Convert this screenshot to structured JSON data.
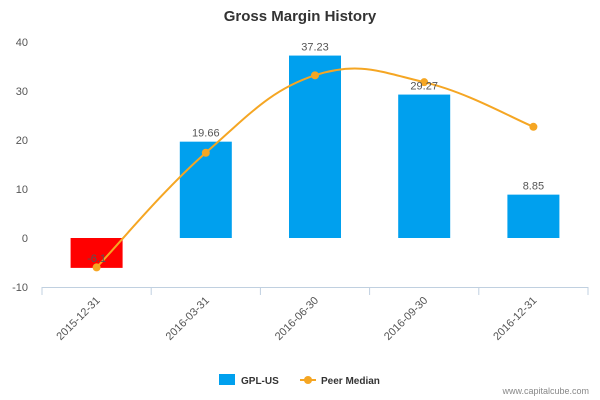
{
  "chart_data": {
    "type": "bar",
    "title": "Gross Margin History",
    "categories": [
      "2015-12-31",
      "2016-03-31",
      "2016-06-30",
      "2016-09-30",
      "2016-12-31"
    ],
    "series": [
      {
        "name": "GPL-US",
        "kind": "bar",
        "values": [
          -6.1,
          19.66,
          37.23,
          29.27,
          8.85
        ],
        "value_labels": [
          "-6.1",
          "19.66",
          "37.23",
          "29.27",
          "8.85"
        ],
        "color": "#00a0ee",
        "negative_color": "#ff0000"
      },
      {
        "name": "Peer Median",
        "kind": "line",
        "values": [
          -6.0,
          17.4,
          33.2,
          31.8,
          22.7
        ],
        "color": "#f5a623"
      }
    ],
    "ylim": [
      -10,
      40
    ],
    "yticks": [
      -10,
      0,
      10,
      20,
      30,
      40
    ],
    "ytick_labels": [
      "-10",
      "0",
      "10",
      "20",
      "30",
      "40"
    ],
    "xlabel": "",
    "ylabel": "",
    "legend": "bottom-center"
  },
  "credit": "www.capitalcube.com"
}
